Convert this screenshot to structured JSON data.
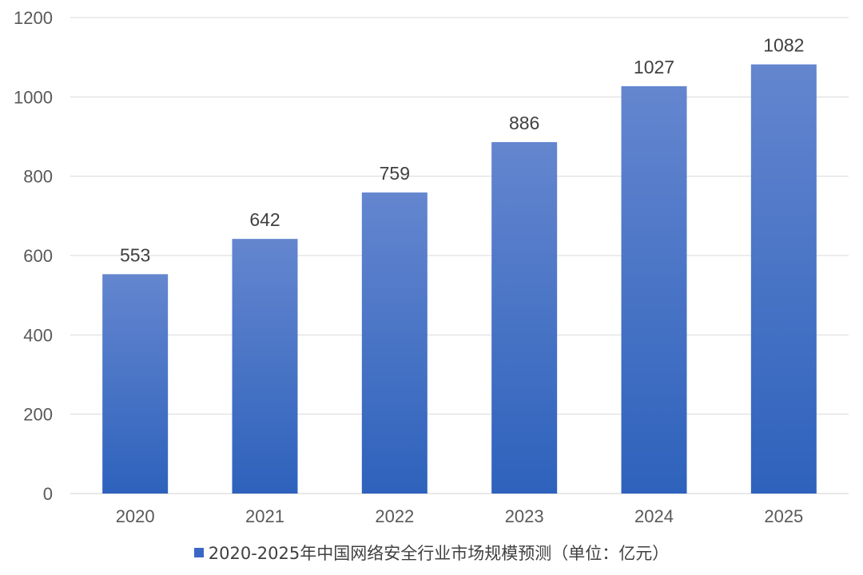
{
  "chart_data": {
    "type": "bar",
    "categories": [
      "2020",
      "2021",
      "2022",
      "2023",
      "2024",
      "2025"
    ],
    "series": [
      {
        "name": "2020-2025年中国网络安全行业市场规模预测（单位：亿元）",
        "values": [
          553,
          642,
          759,
          886,
          1027,
          1082
        ]
      }
    ],
    "data_labels": [
      "553",
      "642",
      "759",
      "886",
      "1027",
      "1082"
    ],
    "y_ticks": [
      0,
      200,
      400,
      600,
      800,
      1000,
      1200
    ],
    "ylim": [
      0,
      1200
    ],
    "grid": true,
    "legend_position": "bottom",
    "colors": {
      "bar_top": "#6486CF",
      "bar_bottom": "#2E62BC",
      "legend_swatch": "#3A68C4",
      "gridline": "#D9D9D9"
    }
  }
}
